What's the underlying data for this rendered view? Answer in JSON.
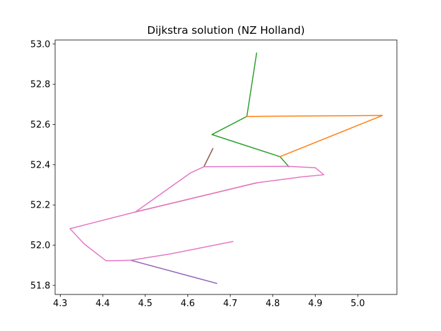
{
  "chart_data": {
    "type": "line",
    "title": "Dijkstra solution (NZ Holland)",
    "xlabel": "",
    "ylabel": "",
    "xlim": [
      4.288,
      5.092
    ],
    "ylim": [
      51.755,
      53.02
    ],
    "xticks": [
      4.3,
      4.4,
      4.5,
      4.6,
      4.7,
      4.8,
      4.9,
      5.0
    ],
    "xtick_labels": [
      "4.3",
      "4.4",
      "4.5",
      "4.6",
      "4.7",
      "4.8",
      "4.9",
      "5.0"
    ],
    "yticks": [
      51.8,
      52.0,
      52.2,
      52.4,
      52.6,
      52.8,
      53.0
    ],
    "ytick_labels": [
      "51.8",
      "52.0",
      "52.2",
      "52.4",
      "52.6",
      "52.8",
      "53.0"
    ],
    "grid": false,
    "series": [
      {
        "color": "#2ca02c",
        "x": [
          4.762,
          4.739,
          4.657,
          4.817,
          4.838
        ],
        "y": [
          52.955,
          52.64,
          52.55,
          52.44,
          52.39
        ]
      },
      {
        "color": "#ff7f0e",
        "x": [
          4.739,
          5.058,
          4.817
        ],
        "y": [
          52.64,
          52.645,
          52.44
        ]
      },
      {
        "color": "#8c564b",
        "x": [
          4.659,
          4.638
        ],
        "y": [
          52.48,
          52.39
        ]
      },
      {
        "color": "#d62728",
        "x": [
          4.477,
          4.762
        ],
        "y": [
          52.165,
          52.31
        ]
      },
      {
        "color": "#9467bd",
        "x": [
          4.466,
          4.668
        ],
        "y": [
          51.925,
          51.81
        ]
      },
      {
        "color": "#e377c2",
        "x": [
          4.706,
          4.555,
          4.466,
          4.408,
          4.357,
          4.323,
          4.477,
          4.607,
          4.638,
          4.838,
          4.9,
          4.92,
          4.87,
          4.762,
          4.477,
          4.323,
          4.357,
          4.408,
          4.466
        ],
        "y": [
          52.018,
          51.955,
          51.925,
          51.922,
          52.005,
          52.082,
          52.165,
          52.36,
          52.39,
          52.392,
          52.385,
          52.35,
          52.34,
          52.31,
          52.165,
          52.082,
          52.005,
          51.922,
          51.925
        ]
      }
    ]
  }
}
